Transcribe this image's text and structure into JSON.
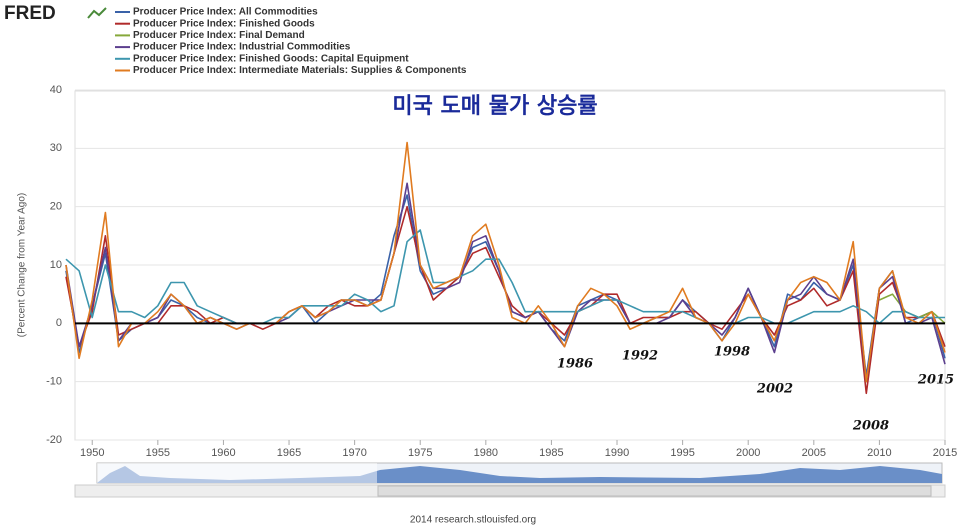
{
  "chart_data": {
    "type": "line",
    "logo": "FRED",
    "title": "미국 도매 물가 상승률",
    "y_label": "(Percent Change from Year Ago)",
    "footer": "2014 research.stlouisfed.org",
    "annotations": [
      "1986",
      "1992",
      "1998",
      "2002",
      "2008",
      "2015"
    ],
    "xlim": [
      1948,
      2015
    ],
    "ylim": [
      -20,
      40
    ],
    "xticks": [
      1950,
      1955,
      1960,
      1965,
      1970,
      1975,
      1980,
      1985,
      1990,
      1995,
      2000,
      2005,
      2010,
      2015
    ],
    "yticks": [
      -20,
      -10,
      0,
      10,
      20,
      30,
      40
    ],
    "baseline": 0,
    "grid": true,
    "x": [
      1948,
      1949,
      1950,
      1951,
      1952,
      1953,
      1954,
      1955,
      1956,
      1957,
      1958,
      1959,
      1960,
      1961,
      1962,
      1963,
      1964,
      1965,
      1966,
      1967,
      1968,
      1969,
      1970,
      1971,
      1972,
      1973,
      1974,
      1975,
      1976,
      1977,
      1978,
      1979,
      1980,
      1981,
      1982,
      1983,
      1984,
      1985,
      1986,
      1987,
      1988,
      1989,
      1990,
      1991,
      1992,
      1993,
      1994,
      1995,
      1996,
      1997,
      1998,
      1999,
      2000,
      2001,
      2002,
      2003,
      2004,
      2005,
      2006,
      2007,
      2008,
      2009,
      2010,
      2011,
      2012,
      2013,
      2014,
      2015
    ],
    "series": [
      {
        "name": "Producer Price Index: All Commodities",
        "color": "#3a62a8",
        "values": [
          9,
          -5,
          3,
          12,
          -3,
          -1,
          0,
          1,
          4,
          3,
          1,
          0,
          0,
          0,
          0,
          0,
          0,
          2,
          3,
          0,
          2,
          4,
          4,
          3,
          5,
          15,
          22,
          9,
          5,
          6,
          8,
          13,
          14,
          9,
          2,
          1,
          2,
          -1,
          -3,
          3,
          4,
          5,
          4,
          0,
          0,
          1,
          1,
          4,
          2,
          0,
          -3,
          1,
          6,
          1,
          -4,
          5,
          4,
          7,
          5,
          4,
          10,
          -9,
          6,
          9,
          0,
          1,
          2,
          -6
        ]
      },
      {
        "name": "Producer Price Index: Finished Goods",
        "color": "#b02a2a",
        "values": [
          8,
          -4,
          2,
          15,
          -2,
          -1,
          0,
          0,
          3,
          3,
          2,
          0,
          1,
          0,
          0,
          -1,
          0,
          2,
          3,
          1,
          3,
          4,
          3,
          3,
          4,
          12,
          20,
          10,
          4,
          6,
          8,
          12,
          13,
          8,
          3,
          1,
          2,
          0,
          -2,
          2,
          3,
          5,
          5,
          0,
          1,
          1,
          1,
          2,
          2,
          0,
          -1,
          2,
          5,
          1,
          -2,
          3,
          4,
          6,
          3,
          4,
          9,
          -12,
          5,
          7,
          1,
          1,
          2,
          -4
        ]
      },
      {
        "name": "Producer Price Index: Final Demand",
        "color": "#86a83a",
        "values": [
          null,
          null,
          null,
          null,
          null,
          null,
          null,
          null,
          null,
          null,
          null,
          null,
          null,
          null,
          null,
          null,
          null,
          null,
          null,
          null,
          null,
          null,
          null,
          null,
          null,
          null,
          null,
          null,
          null,
          null,
          null,
          null,
          null,
          null,
          null,
          null,
          null,
          null,
          null,
          null,
          null,
          null,
          null,
          null,
          null,
          null,
          null,
          null,
          null,
          null,
          null,
          null,
          null,
          null,
          null,
          null,
          null,
          null,
          null,
          null,
          null,
          null,
          4,
          5,
          2,
          1,
          2,
          0
        ]
      },
      {
        "name": "Producer Price Index: Industrial Commodities",
        "color": "#5c3f8e",
        "values": [
          10,
          -4,
          3,
          13,
          -3,
          0,
          0,
          1,
          5,
          3,
          0,
          1,
          0,
          -1,
          0,
          0,
          0,
          1,
          3,
          1,
          2,
          3,
          4,
          4,
          4,
          12,
          24,
          10,
          6,
          6,
          7,
          14,
          15,
          9,
          2,
          1,
          2,
          -1,
          -4,
          2,
          4,
          4,
          4,
          0,
          0,
          0,
          1,
          4,
          1,
          0,
          -2,
          1,
          6,
          1,
          -5,
          4,
          5,
          8,
          5,
          4,
          11,
          -10,
          6,
          8,
          0,
          0,
          1,
          -7
        ]
      },
      {
        "name": "Producer Price Index: Finished Goods: Capital Equipment",
        "color": "#3d96ae",
        "values": [
          11,
          9,
          1,
          10,
          2,
          2,
          1,
          3,
          7,
          7,
          3,
          2,
          1,
          0,
          0,
          0,
          1,
          1,
          3,
          3,
          3,
          3,
          5,
          4,
          2,
          3,
          14,
          16,
          7,
          7,
          8,
          9,
          11,
          11,
          7,
          2,
          2,
          2,
          2,
          2,
          3,
          4,
          4,
          3,
          2,
          2,
          2,
          2,
          1,
          0,
          0,
          0,
          1,
          1,
          0,
          0,
          1,
          2,
          2,
          2,
          3,
          2,
          0,
          2,
          2,
          1,
          1,
          1
        ]
      },
      {
        "name": "Producer Price Index: Intermediate Materials: Supplies & Components",
        "color": "#e07b20",
        "values": [
          10,
          -6,
          4,
          19,
          -4,
          0,
          0,
          2,
          5,
          3,
          0,
          1,
          0,
          -1,
          0,
          0,
          0,
          2,
          3,
          1,
          2,
          4,
          4,
          3,
          4,
          12,
          31,
          10,
          6,
          7,
          8,
          15,
          17,
          10,
          1,
          0,
          3,
          0,
          -4,
          3,
          6,
          5,
          3,
          -1,
          0,
          1,
          2,
          6,
          1,
          0,
          -3,
          0,
          5,
          1,
          -3,
          4,
          7,
          8,
          7,
          4,
          14,
          -10,
          6,
          9,
          1,
          0,
          2,
          -5
        ]
      }
    ]
  }
}
